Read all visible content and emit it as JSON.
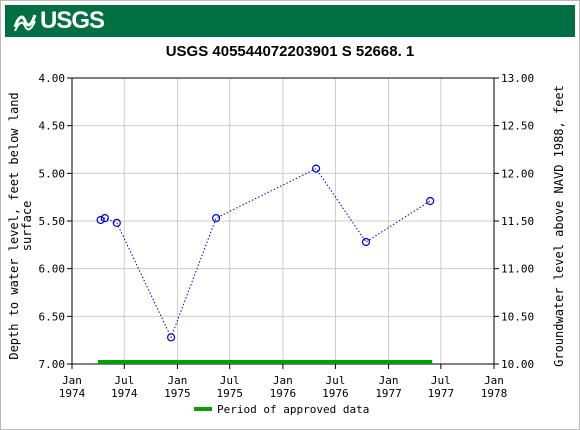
{
  "header": {
    "logo_text": "USGS",
    "logo_icon": "usgs-wave-icon",
    "brand_color": "#006f41"
  },
  "chart_data": {
    "type": "scatter",
    "title": "USGS 405544072203901 S 52668. 1",
    "ylabel_left": [
      "Depth to water level, feet below land",
      "surface"
    ],
    "ylabel_right": "Groundwater level above NAVD 1988, feet",
    "ylim_left": [
      4.0,
      7.0
    ],
    "ylim_right": [
      10.0,
      13.0
    ],
    "y_inverted": true,
    "grid": true,
    "left_ticks": [
      "4.00",
      "4.50",
      "5.00",
      "5.50",
      "6.00",
      "6.50",
      "7.00"
    ],
    "right_ticks": [
      "13.00",
      "12.50",
      "12.00",
      "11.50",
      "11.00",
      "10.50",
      "10.00"
    ],
    "x_ticks": [
      {
        "line1": "Jan",
        "line2": "1974"
      },
      {
        "line1": "Jul",
        "line2": "1974"
      },
      {
        "line1": "Jan",
        "line2": "1975"
      },
      {
        "line1": "Jul",
        "line2": "1975"
      },
      {
        "line1": "Jan",
        "line2": "1976"
      },
      {
        "line1": "Jul",
        "line2": "1976"
      },
      {
        "line1": "Jan",
        "line2": "1977"
      },
      {
        "line1": "Jul",
        "line2": "1977"
      },
      {
        "line1": "Jan",
        "line2": "1978"
      }
    ],
    "x_tick_dates": [
      "1974-01-01",
      "1974-07-01",
      "1975-01-01",
      "1975-07-01",
      "1976-01-01",
      "1976-07-01",
      "1977-01-01",
      "1977-07-01",
      "1978-01-01"
    ],
    "series": [
      {
        "color": "#0000cc",
        "points": [
          {
            "date": "1974-04-10",
            "value": 5.49
          },
          {
            "date": "1974-04-25",
            "value": 5.47
          },
          {
            "date": "1974-06-05",
            "value": 5.52
          },
          {
            "date": "1974-12-10",
            "value": 6.72
          },
          {
            "date": "1975-05-15",
            "value": 5.47
          },
          {
            "date": "1976-04-25",
            "value": 4.95
          },
          {
            "date": "1976-10-15",
            "value": 5.72
          },
          {
            "date": "1977-05-25",
            "value": 5.29
          }
        ]
      }
    ],
    "approved_period": {
      "start": "1974-04-01",
      "end": "1977-06-01",
      "color": "#00a000"
    },
    "legend": {
      "label": "Period of approved data",
      "placement": "bottom-center"
    }
  }
}
